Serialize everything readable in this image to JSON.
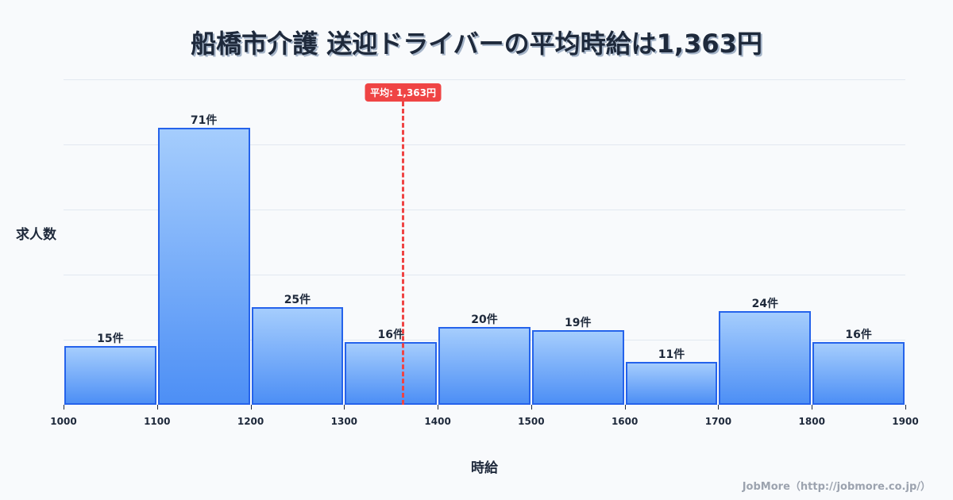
{
  "title": "船橋市介護 送迎ドライバーの平均時給は1,363円",
  "y_axis_label": "求人数",
  "x_axis_label": "時給",
  "credit": "JobMore（http://jobmore.co.jp/）",
  "mean_badge": "平均: 1,363円",
  "colors": {
    "bar_border": "#2563eb",
    "bar_top": "#a5cdfd",
    "bar_bottom": "#4d8ff5",
    "mean_line": "#ef4444",
    "text": "#1e293b"
  },
  "chart_data": {
    "type": "bar",
    "title": "船橋市介護 送迎ドライバーの平均時給は1,363円",
    "xlabel": "時給",
    "ylabel": "求人数",
    "bin_edges": [
      1000,
      1100,
      1200,
      1300,
      1400,
      1500,
      1600,
      1700,
      1800,
      1900
    ],
    "categories": [
      "1000-1100",
      "1100-1200",
      "1200-1300",
      "1300-1400",
      "1400-1500",
      "1500-1600",
      "1600-1700",
      "1700-1800",
      "1800-1900"
    ],
    "values": [
      15,
      71,
      25,
      16,
      20,
      19,
      11,
      24,
      16
    ],
    "value_labels": [
      "15件",
      "71件",
      "25件",
      "16件",
      "20件",
      "19件",
      "11件",
      "24件",
      "16件"
    ],
    "x_tick_labels": [
      "1000",
      "1100",
      "1200",
      "1300",
      "1400",
      "1500",
      "1600",
      "1700",
      "1800",
      "1900"
    ],
    "mean": 1363,
    "mean_label": "平均: 1,363円",
    "xlim": [
      1000,
      1900
    ],
    "ylim": [
      0,
      83.3
    ],
    "grid": true,
    "legend": "none"
  }
}
